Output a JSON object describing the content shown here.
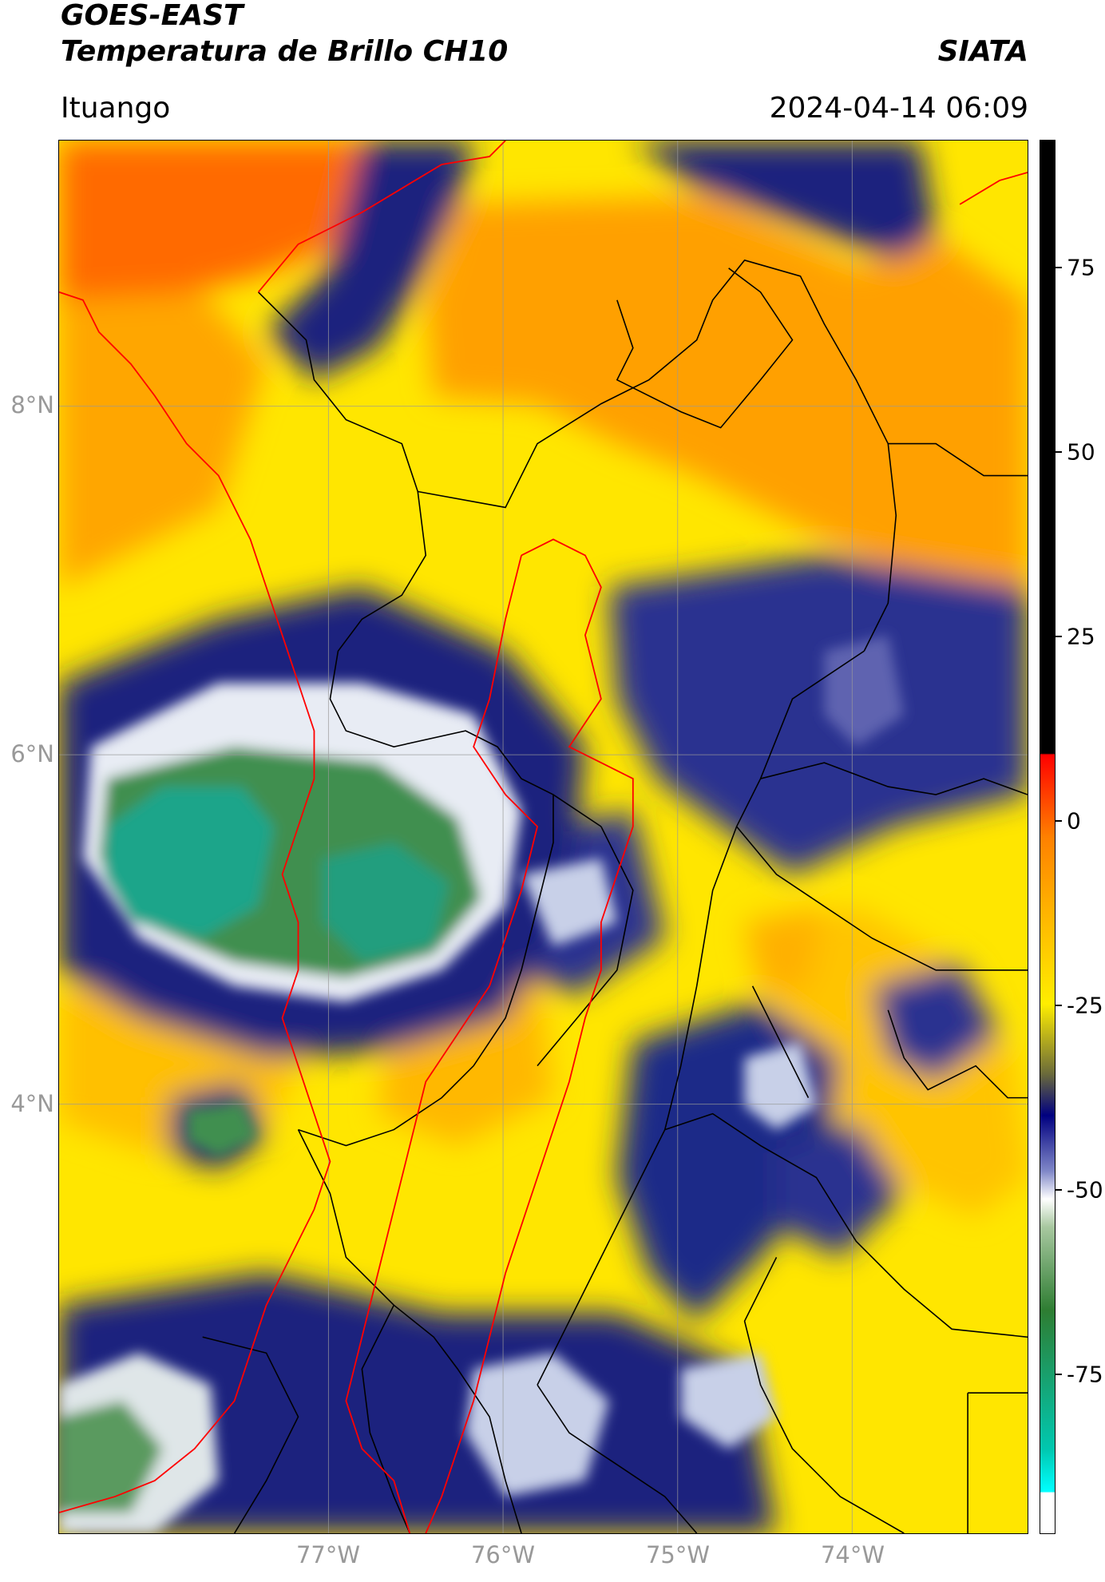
{
  "header": {
    "title_line1": "GOES-EAST",
    "title_line2": "Temperatura de Brillo CH10",
    "brand": "SIATA",
    "location": "Ituango",
    "timestamp": "2024-04-14 06:09"
  },
  "map": {
    "lat_labels": [
      "8°N",
      "6°N",
      "4°N"
    ],
    "lon_labels": [
      "77°W",
      "76°W",
      "75°W",
      "74°W"
    ],
    "boundary_colors": {
      "country": "#ff0000",
      "department": "#000000"
    }
  },
  "colorbar": {
    "ticks": [
      "75",
      "50",
      "25",
      "0",
      "-25",
      "-50",
      "-75"
    ],
    "colors": {
      "warm_orange": "#ff8000",
      "yellow": "#ffee00",
      "navy": "#000080",
      "white": "#ffffff",
      "green": "#2e7d32",
      "teal": "#00c8b0",
      "black": "#000000",
      "red": "#ff0000"
    }
  }
}
